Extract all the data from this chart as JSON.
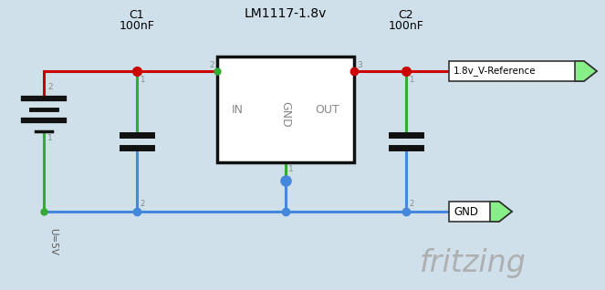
{
  "bg_color": "#cfe0eb",
  "wire_red": "#cc0000",
  "wire_blue": "#4488dd",
  "wire_green": "#33aa33",
  "node_blue": "#4488dd",
  "node_red": "#cc0000",
  "node_green": "#33aa33",
  "ic_fill": "white",
  "ic_border": "#111111",
  "cap_color": "#111111",
  "label_color": "#555555",
  "pin_label_color": "#888888",
  "fritzing_color": "#aaaaaa",
  "ref_box_fill": "white",
  "ref_box_border": "#333333",
  "gnd_box_fill": "white",
  "gnd_box_border": "#333333",
  "ref_arrow_fill": "#88ee88",
  "gnd_arrow_fill": "#88ee88",
  "voltage_label": "U=5V",
  "c1_label1": "C1",
  "c1_label2": "100nF",
  "c2_label1": "C2",
  "c2_label2": "100nF",
  "ic_label": "LM1117-1.8v",
  "ic_in_label": "IN",
  "ic_out_label": "OUT",
  "ic_gnd_label": "GND",
  "ref_label": "1.8v_V-Reference",
  "gnd_label": "GND",
  "pin_ic_in": "2",
  "pin_ic_out": "3",
  "pin_ic_gnd": "1",
  "pin_c1_top": "1",
  "pin_c1_bot": "2",
  "pin_c2_top": "1",
  "pin_c2_bot": "2",
  "pin_bat_top": "2",
  "pin_bat_bot": "1"
}
